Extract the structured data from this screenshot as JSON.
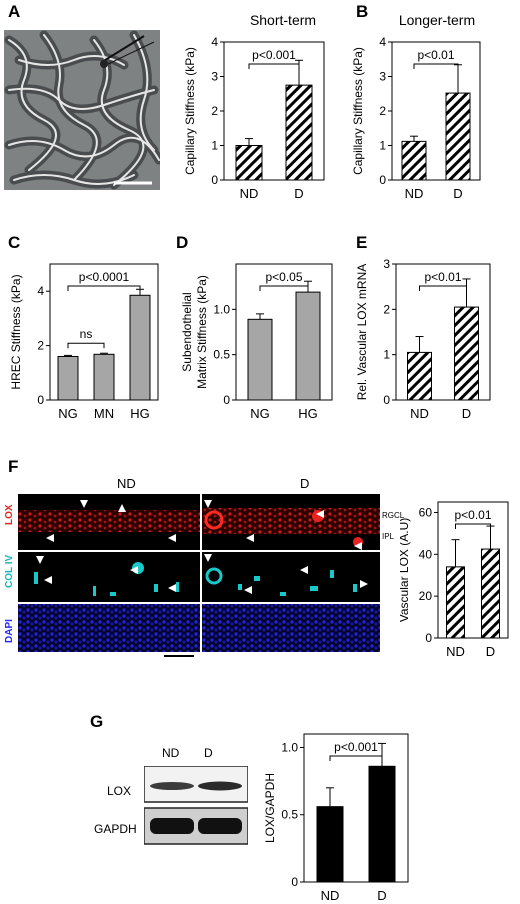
{
  "panel_labels": {
    "A": "A",
    "B": "B",
    "C": "C",
    "D": "D",
    "E": "E",
    "F": "F",
    "G": "G"
  },
  "panels": {
    "A": {
      "title": "Short-term"
    },
    "B": {
      "title": "Longer-term"
    },
    "F": {
      "col_nd": "ND",
      "col_d": "D",
      "row_lox": "LOX",
      "row_col": "COL IV",
      "row_dapi": "DAPI",
      "layer_rgcl": "RGCL",
      "layer_ipl": "IPL"
    },
    "G": {
      "lane_nd": "ND",
      "lane_d": "D",
      "band_lox": "LOX",
      "band_gapdh": "GAPDH"
    }
  },
  "colors": {
    "hatch": "#000000",
    "gray_bar": "#a6a6a6",
    "black_bar": "#000000",
    "lox_red": "#e8231f",
    "col_cyan": "#19c8c8",
    "dapi_blue": "#2a2aff"
  },
  "chart_data": [
    {
      "id": "A",
      "type": "bar",
      "style": "hatched",
      "categories": [
        "ND",
        "D"
      ],
      "values": [
        1.0,
        2.75
      ],
      "errors": [
        0.2,
        0.72
      ],
      "ylabel": "Capillary Stiffness (kPa)",
      "ylim": [
        0,
        4
      ],
      "yticks": [
        "0",
        "1",
        "2",
        "3",
        "4"
      ],
      "sig": [
        {
          "pair": [
            0,
            1
          ],
          "label": "p<0.001"
        }
      ]
    },
    {
      "id": "B",
      "type": "bar",
      "style": "hatched",
      "categories": [
        "ND",
        "D"
      ],
      "values": [
        1.12,
        2.52
      ],
      "errors": [
        0.15,
        0.82
      ],
      "ylabel": "Capillary Stiffness (kPa)",
      "ylim": [
        0,
        4
      ],
      "yticks": [
        "0",
        "1",
        "2",
        "3",
        "4"
      ],
      "sig": [
        {
          "pair": [
            0,
            1
          ],
          "label": "p<0.01"
        }
      ]
    },
    {
      "id": "C",
      "type": "bar",
      "style": "gray",
      "categories": [
        "NG",
        "MN",
        "HG"
      ],
      "values": [
        1.6,
        1.68,
        3.85
      ],
      "errors": [
        0.04,
        0.04,
        0.22
      ],
      "ylabel": "HREC Stiffness (kPa)",
      "ylim": [
        0,
        5
      ],
      "yticks": [
        "0",
        "2",
        "4"
      ],
      "ytick_values": [
        0,
        2,
        4
      ],
      "sig": [
        {
          "pair": [
            0,
            1
          ],
          "label": "ns"
        },
        {
          "pair": [
            0,
            2
          ],
          "label": "p<0.0001"
        }
      ]
    },
    {
      "id": "D",
      "type": "bar",
      "style": "gray",
      "categories": [
        "NG",
        "HG"
      ],
      "values": [
        0.89,
        1.19
      ],
      "errors": [
        0.06,
        0.12
      ],
      "ylabel": "Subendothelial Matrix Stiffness (kPa)",
      "ylabel_lines": [
        "Subendothelial",
        "Matrix Stiffness (kPa)"
      ],
      "ylim": [
        0,
        1.5
      ],
      "yticks": [
        "0",
        "0.5",
        "1.0"
      ],
      "ytick_values": [
        0,
        0.5,
        1.0
      ],
      "sig": [
        {
          "pair": [
            0,
            1
          ],
          "label": "p<0.05"
        }
      ]
    },
    {
      "id": "E",
      "type": "bar",
      "style": "hatched",
      "categories": [
        "ND",
        "D"
      ],
      "values": [
        1.05,
        2.05
      ],
      "errors": [
        0.35,
        0.62
      ],
      "ylabel": "Rel. Vascular LOX mRNA",
      "ylim": [
        0,
        3
      ],
      "yticks": [
        "0",
        "1",
        "2",
        "3"
      ],
      "sig": [
        {
          "pair": [
            0,
            1
          ],
          "label": "p<0.01"
        }
      ]
    },
    {
      "id": "F",
      "type": "bar",
      "style": "hatched",
      "categories": [
        "ND",
        "D"
      ],
      "values": [
        34,
        42.5
      ],
      "errors": [
        13,
        11
      ],
      "ylabel": "Vascular LOX (A.U)",
      "ylim": [
        0,
        65
      ],
      "yticks": [
        "0",
        "20",
        "40",
        "60"
      ],
      "ytick_values": [
        0,
        20,
        40,
        60
      ],
      "sig": [
        {
          "pair": [
            0,
            1
          ],
          "label": "p<0.01"
        }
      ]
    },
    {
      "id": "G",
      "type": "bar",
      "style": "black",
      "categories": [
        "ND",
        "D"
      ],
      "values": [
        0.56,
        0.86
      ],
      "errors": [
        0.14,
        0.17
      ],
      "ylabel": "LOX/GAPDH",
      "ylim": [
        0,
        1.1
      ],
      "yticks": [
        "0",
        "0.5",
        "1.0"
      ],
      "ytick_values": [
        0,
        0.5,
        1.0
      ],
      "sig": [
        {
          "pair": [
            0,
            1
          ],
          "label": "p<0.001"
        }
      ]
    }
  ]
}
